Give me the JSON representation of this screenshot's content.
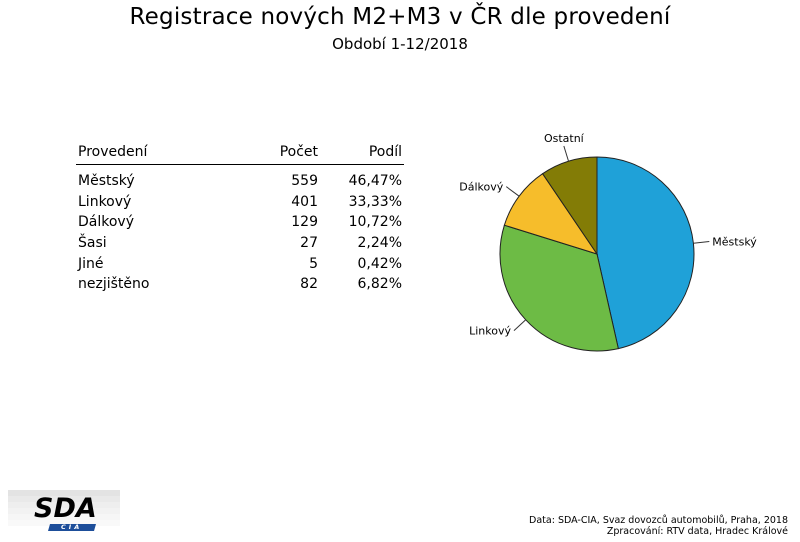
{
  "header": {
    "title": "Registrace nových M2+M3 v ČR dle provedení",
    "subtitle": "Období 1-12/2018"
  },
  "table": {
    "columns": [
      "Provedení",
      "Počet",
      "Podíl"
    ],
    "rows": [
      {
        "label": "Městský",
        "count": "559",
        "share": "46,47%"
      },
      {
        "label": "Linkový",
        "count": "401",
        "share": "33,33%"
      },
      {
        "label": "Dálkový",
        "count": "129",
        "share": "10,72%"
      },
      {
        "label": "Šasi",
        "count": "27",
        "share": "2,24%"
      },
      {
        "label": "Jiné",
        "count": "5",
        "share": "0,42%"
      },
      {
        "label": "nezjištěno",
        "count": "82",
        "share": "6,82%"
      }
    ]
  },
  "chart_data": {
    "type": "pie",
    "title": "",
    "slices": [
      {
        "label": "Městský",
        "value": 559,
        "color": "#1fa1d8"
      },
      {
        "label": "Linkový",
        "value": 401,
        "color": "#6dbb45"
      },
      {
        "label": "Dálkový",
        "value": 129,
        "color": "#f6bd2b"
      },
      {
        "label": "Ostatní",
        "value": 114,
        "color": "#837c06"
      }
    ]
  },
  "logo": {
    "main": "SDA",
    "sub": "CIA"
  },
  "source": {
    "data_line": "Data: SDA-CIA, Svaz dovozců automobilů, Praha, 2018",
    "processing_line": "Zpracování: RTV data, Hradec Králové"
  }
}
